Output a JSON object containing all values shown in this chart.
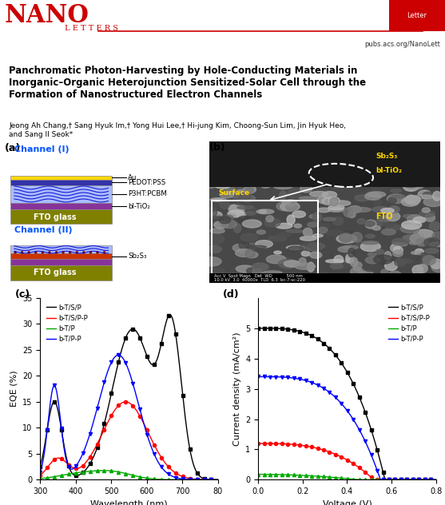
{
  "title_main": "Panchromatic Photon-Harvesting by Hole-Conducting Materials in\nInorganic–Organic Heterojunction Sensitized-Solar Cell through the\nFormation of Nanostructured Electron Channels",
  "authors": "Jeong Ah Chang,† Sang Hyuk Im,† Yong Hui Lee,† Hi-jung Kim, Choong-Sun Lim, Jin Hyuk Heo,\nand Sang Il Seok*",
  "journal": "NANO LETTERS",
  "journal_url": "pubs.acs.org/NanoLett",
  "letter_tag": "Letter",
  "bg_color": "#ffffff",
  "red_color": "#cc0000",
  "channel1_label": "Channel (I)",
  "channel2_label": "Channel (II)",
  "channel1_layers": [
    "Au",
    "PEDOT:PSS",
    "P3HT:PCBM",
    "bl-TiO₂"
  ],
  "channel2_layers": [
    "Sb₂S₃"
  ],
  "fto_label": "FTO glass",
  "panel_c_legend": [
    "b-T/S/P",
    "b-T/S/P-P",
    "b-T/P",
    "b-T/P-P"
  ],
  "panel_d_legend": [
    "b-T/S/P",
    "b-T/S/P-P",
    "b-T/P",
    "b-T/P-P"
  ],
  "line_colors": [
    "#000000",
    "#ff0000",
    "#00aa00",
    "#0000ff"
  ],
  "panel_c_xlabel": "Wavelength (nm)",
  "panel_c_ylabel": "EQE (%)",
  "panel_d_xlabel": "Voltage (V)",
  "panel_d_ylabel": "Current density (mA/cm²)"
}
